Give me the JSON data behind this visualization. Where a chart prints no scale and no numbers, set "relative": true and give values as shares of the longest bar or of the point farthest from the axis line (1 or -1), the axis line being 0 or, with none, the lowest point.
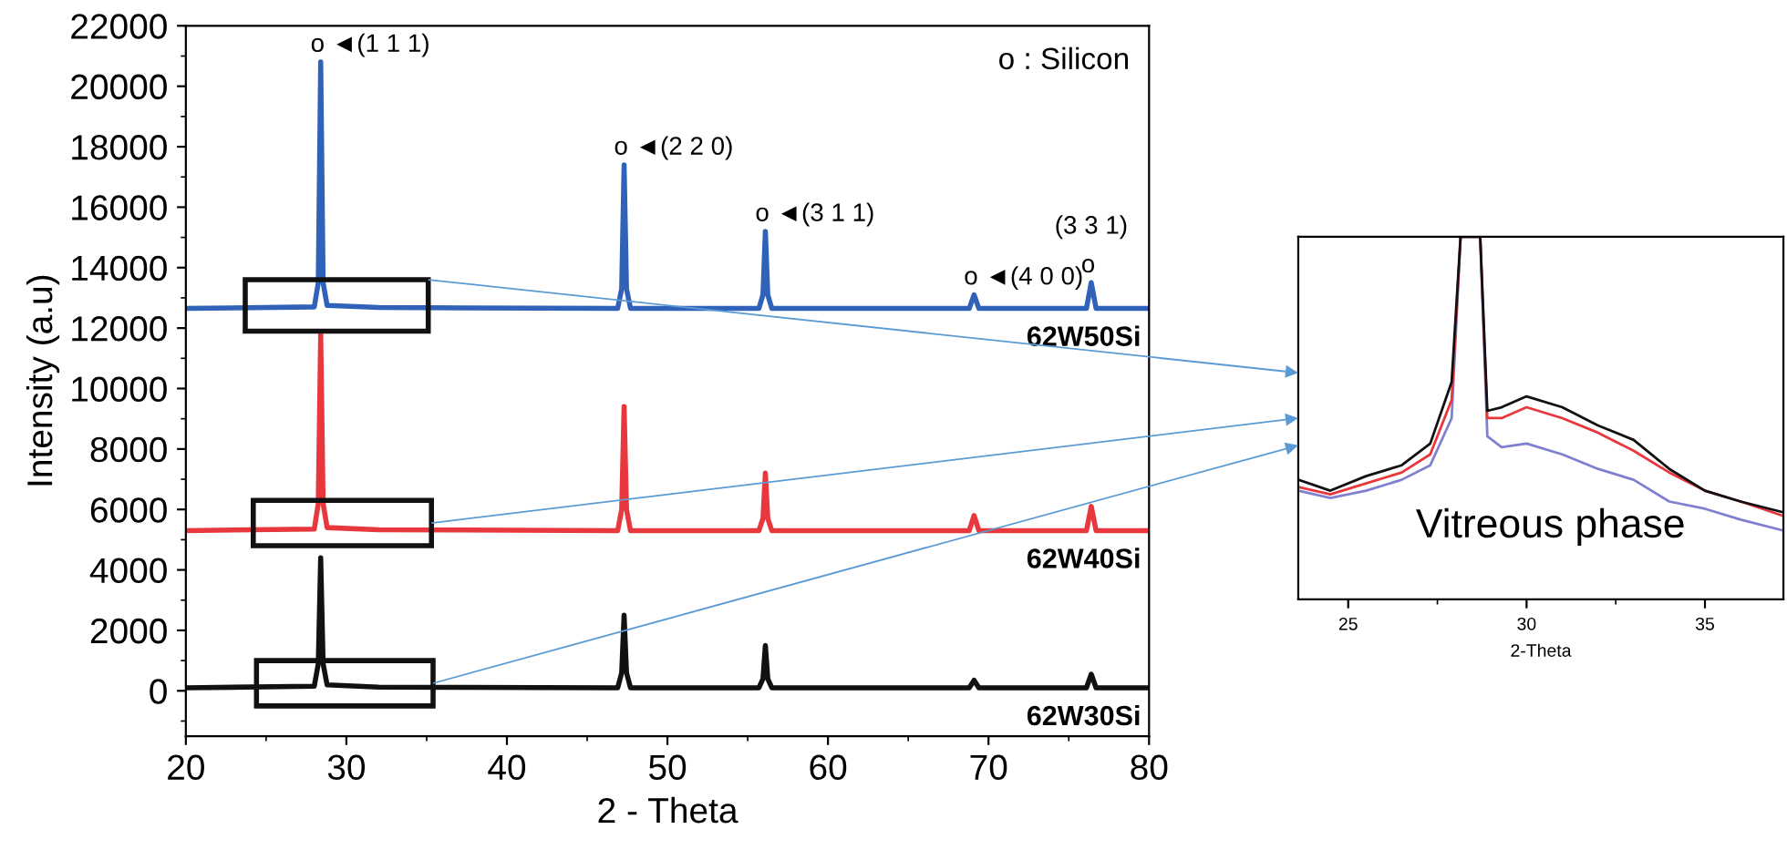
{
  "chart_data": [
    {
      "type": "line",
      "xlabel": "2 - Theta",
      "ylabel": "Intensity (a.u)",
      "xlim": [
        20,
        80
      ],
      "xticks": [
        20,
        30,
        40,
        50,
        60,
        70,
        80
      ],
      "ylim": [
        -1500,
        22000
      ],
      "yticks": [
        0,
        2000,
        4000,
        6000,
        8000,
        10000,
        12000,
        14000,
        16000,
        18000,
        20000,
        22000
      ],
      "grid": false,
      "legend": false,
      "marker": "none",
      "line_style": "solid",
      "series": [
        {
          "name": "62W30Si",
          "color": "#111111",
          "x": [
            20,
            28.0,
            28.25,
            28.4,
            28.55,
            28.8,
            32,
            46.9,
            47.15,
            47.3,
            47.45,
            47.7,
            55.7,
            55.95,
            56.1,
            56.25,
            56.5,
            68.8,
            69.1,
            69.4,
            76.1,
            76.4,
            76.7,
            80
          ],
          "values": [
            100,
            150,
            900,
            4400,
            900,
            200,
            120,
            100,
            600,
            2500,
            600,
            100,
            100,
            400,
            1500,
            400,
            100,
            100,
            350,
            100,
            100,
            550,
            100,
            100
          ]
        },
        {
          "name": "62W40Si",
          "color": "#e8383d",
          "x": [
            20,
            28.0,
            28.25,
            28.4,
            28.55,
            28.8,
            32,
            46.9,
            47.15,
            47.3,
            47.45,
            47.7,
            55.7,
            55.95,
            56.1,
            56.25,
            56.5,
            68.8,
            69.1,
            69.4,
            76.1,
            76.4,
            76.7,
            80
          ],
          "values": [
            5300,
            5350,
            6200,
            11800,
            6200,
            5400,
            5330,
            5300,
            6000,
            9400,
            6000,
            5300,
            5300,
            5700,
            7200,
            5700,
            5300,
            5300,
            5800,
            5300,
            5300,
            6100,
            5300,
            5300
          ]
        },
        {
          "name": "62W50Si",
          "color": "#2f62b8",
          "x": [
            20,
            28.0,
            28.25,
            28.4,
            28.55,
            28.8,
            32,
            46.9,
            47.15,
            47.3,
            47.45,
            47.7,
            55.7,
            55.95,
            56.1,
            56.25,
            56.5,
            68.8,
            69.1,
            69.4,
            76.1,
            76.4,
            76.7,
            80
          ],
          "values": [
            12650,
            12700,
            13500,
            20800,
            13500,
            12750,
            12680,
            12650,
            13300,
            17400,
            13300,
            12650,
            12650,
            13100,
            15200,
            13100,
            12650,
            12650,
            13100,
            12650,
            12650,
            13500,
            12650,
            12650
          ]
        }
      ],
      "annotations": [
        "o : Silicon",
        {
          "text": "o ◄(1 1 1)",
          "x": 28.4,
          "y": 20800
        },
        {
          "text": "o ◄(2 2 0)",
          "x": 47.3,
          "y": 17400
        },
        {
          "text": "o ◄(3 1 1)",
          "x": 56.1,
          "y": 15200
        },
        {
          "text": "o ◄(4 0 0)",
          "x": 69.1,
          "y": 13100
        },
        {
          "text": "o",
          "x": 76.4,
          "y": 13500
        },
        "(3 3 1)"
      ]
    },
    {
      "type": "line",
      "relative": true,
      "xlabel": "2-Theta",
      "xlim": [
        23.6,
        37.2
      ],
      "xticks": [
        25,
        30,
        35
      ],
      "tick_labels": "x",
      "grid": false,
      "legend": false,
      "marker": "none",
      "line_style": "solid",
      "series": [
        {
          "color": "#8080d0",
          "x": [
            23.6,
            24.5,
            25.5,
            26.5,
            27.3,
            27.9,
            28.15,
            28.7,
            28.9,
            29.3,
            30,
            31,
            32,
            33,
            34,
            35,
            36,
            37.2
          ],
          "values": [
            0.3,
            0.28,
            0.3,
            0.33,
            0.37,
            0.5,
            1.0,
            1.0,
            0.45,
            0.42,
            0.43,
            0.4,
            0.36,
            0.33,
            0.27,
            0.25,
            0.22,
            0.19
          ]
        },
        {
          "color": "#e8383d",
          "x": [
            23.6,
            24.5,
            25.5,
            26.5,
            27.3,
            27.9,
            28.15,
            28.7,
            28.9,
            29.3,
            30,
            31,
            32,
            33,
            34,
            35,
            36,
            37.2
          ],
          "values": [
            0.31,
            0.29,
            0.32,
            0.35,
            0.4,
            0.55,
            1.0,
            1.0,
            0.5,
            0.5,
            0.53,
            0.5,
            0.46,
            0.41,
            0.35,
            0.3,
            0.27,
            0.23
          ]
        },
        {
          "color": "#111111",
          "x": [
            23.6,
            24.5,
            25.5,
            26.5,
            27.3,
            27.9,
            28.15,
            28.7,
            28.9,
            29.3,
            30,
            31,
            32,
            33,
            34,
            35,
            36,
            37.2
          ],
          "values": [
            0.33,
            0.3,
            0.34,
            0.37,
            0.43,
            0.6,
            1.0,
            1.0,
            0.52,
            0.53,
            0.56,
            0.53,
            0.48,
            0.44,
            0.36,
            0.3,
            0.27,
            0.24
          ]
        }
      ],
      "annotations": [
        "Vitreous phase"
      ]
    }
  ]
}
